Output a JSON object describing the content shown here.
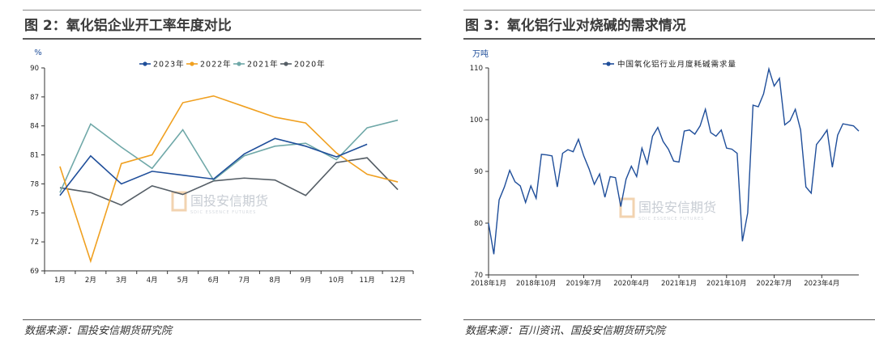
{
  "left": {
    "title": "图 2：氧化铝企业开工率年度对比",
    "source": "数据来源：国投安信期货研究院",
    "watermark": "国投安信期货",
    "watermark_sub": "SDIC ESSENCE FUTURES"
  },
  "right": {
    "title": "图 3：氧化铝行业对烧碱的需求情况",
    "source": "数据来源：百川资讯、国投安信期货研究院",
    "watermark": "国投安信期货",
    "watermark_sub": "SDIC ESSENCE FUTURES"
  },
  "chart_data": [
    {
      "type": "line",
      "ylabel": "%",
      "ylim": [
        69,
        90
      ],
      "yticks": [
        69,
        72,
        75,
        78,
        81,
        84,
        87,
        90
      ],
      "categories": [
        "1月",
        "2月",
        "3月",
        "4月",
        "5月",
        "6月",
        "7月",
        "8月",
        "9月",
        "10月",
        "11月",
        "12月"
      ],
      "legend_position": "top",
      "grid": false,
      "series": [
        {
          "name": "2023年",
          "color": "#1f4e9a",
          "values": [
            76.8,
            80.9,
            78.0,
            79.3,
            78.9,
            78.5,
            81.1,
            82.7,
            81.9,
            80.8,
            82.1,
            null
          ]
        },
        {
          "name": "2022年",
          "color": "#f0a020",
          "values": [
            79.8,
            70.0,
            80.1,
            81.0,
            86.4,
            87.1,
            86.0,
            84.9,
            84.3,
            81.2,
            79.0,
            78.2
          ]
        },
        {
          "name": "2021年",
          "color": "#6fa8a8",
          "values": [
            77.1,
            84.2,
            81.8,
            79.6,
            83.6,
            78.4,
            80.9,
            81.9,
            82.2,
            80.5,
            83.8,
            84.6
          ]
        },
        {
          "name": "2020年",
          "color": "#555e66",
          "values": [
            77.6,
            77.1,
            75.8,
            77.8,
            76.9,
            78.3,
            78.6,
            78.4,
            76.8,
            80.2,
            80.7,
            77.4
          ]
        }
      ]
    },
    {
      "type": "line",
      "ylabel": "万吨",
      "ylim": [
        70,
        110
      ],
      "yticks": [
        70,
        80,
        90,
        100,
        110
      ],
      "xticks": [
        "2018年1月",
        "2018年10月",
        "2019年7月",
        "2020年4月",
        "2021年1月",
        "2021年10月",
        "2022年7月",
        "2023年4月"
      ],
      "x_start": "2018-01",
      "legend_position": "top",
      "grid": false,
      "series": [
        {
          "name": "中国氧化铝行业月度耗碱需求量",
          "color": "#1f4e9a",
          "values": [
            80.0,
            74.0,
            84.5,
            87.0,
            90.2,
            88.0,
            87.2,
            84.0,
            87.2,
            84.8,
            93.3,
            93.2,
            93.0,
            87.0,
            93.5,
            94.2,
            93.8,
            96.2,
            93.0,
            90.5,
            87.5,
            89.5,
            85.0,
            89.0,
            88.8,
            83.2,
            88.5,
            91.0,
            89.0,
            94.5,
            91.5,
            96.8,
            98.5,
            95.8,
            94.3,
            92.0,
            91.8,
            97.8,
            98.0,
            97.2,
            98.8,
            102.0,
            97.5,
            96.8,
            98.0,
            94.5,
            94.3,
            93.5,
            76.5,
            82.0,
            102.8,
            102.5,
            105.0,
            109.8,
            106.5,
            108.0,
            99.0,
            99.8,
            102.0,
            98.0,
            87.0,
            85.8,
            95.2,
            96.5,
            98.0,
            90.8,
            97.0,
            99.2,
            99.0,
            98.8,
            97.8
          ]
        }
      ]
    }
  ]
}
